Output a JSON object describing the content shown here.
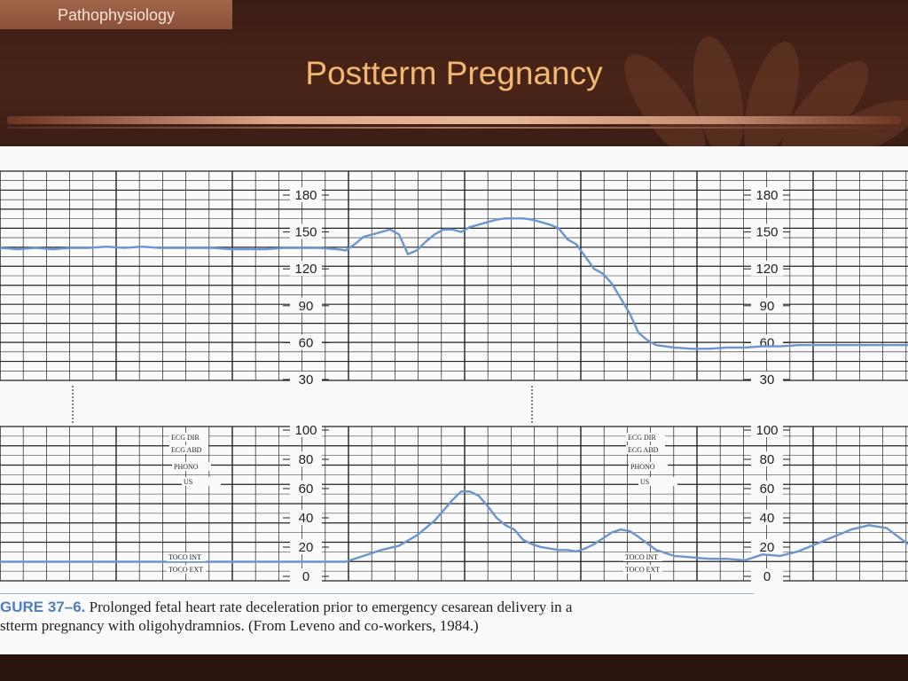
{
  "header": {
    "section_label": "Pathophysiology",
    "title": "Postterm Pregnancy"
  },
  "colors": {
    "background": "#3a1c14",
    "title": "#f2b870",
    "trace": "#6b95cf",
    "grid": "#1e1e1e"
  },
  "figure": {
    "caption_lead": "GURE 37–6.",
    "caption_line1": " Prolonged fetal heart rate deceleration prior to emergency cesarean delivery in a",
    "caption_line2": "stterm pregnancy with oligohydramnios. (From Leveno and co-workers, 1984.)",
    "strip_labels": {
      "ecg_dir": "ECG DIR",
      "ecg_abd": "ECG ABD",
      "phono": "PHONO",
      "us": "US",
      "toco_int": "TOCO INT",
      "toco_ext": "TOCO EXT"
    }
  },
  "chart_data": [
    {
      "type": "line",
      "name": "fetal-heart-rate",
      "ylim": [
        30,
        180
      ],
      "yticks": [
        30,
        60,
        90,
        120,
        150,
        180
      ],
      "x": [
        0,
        20,
        40,
        60,
        80,
        100,
        120,
        140,
        160,
        180,
        200,
        220,
        240,
        260,
        280,
        300,
        320,
        340,
        360,
        380,
        390,
        400,
        410,
        420,
        430,
        440,
        450,
        460,
        470,
        480,
        490,
        500,
        510,
        520,
        530,
        540,
        550,
        560,
        570,
        580,
        590,
        600,
        610,
        620,
        630,
        640,
        650,
        660,
        670,
        680,
        690,
        700,
        710,
        720,
        730,
        740,
        760,
        780,
        800,
        820,
        840,
        860,
        880,
        900,
        920,
        940,
        960,
        980,
        1000,
        1024
      ],
      "values": [
        137,
        136,
        137,
        136,
        137,
        137,
        138,
        137,
        138,
        137,
        137,
        137,
        137,
        136,
        136,
        136,
        137,
        137,
        137,
        136,
        135,
        140,
        146,
        148,
        150,
        152,
        148,
        132,
        135,
        142,
        148,
        152,
        152,
        150,
        154,
        156,
        158,
        160,
        161,
        161,
        161,
        160,
        158,
        156,
        153,
        144,
        140,
        130,
        120,
        116,
        108,
        96,
        84,
        68,
        62,
        58,
        56,
        55,
        55,
        56,
        56,
        57,
        57,
        58,
        58,
        58,
        58,
        58,
        58,
        58
      ]
    },
    {
      "type": "line",
      "name": "uterine-activity",
      "ylim": [
        0,
        100
      ],
      "yticks": [
        0,
        20,
        40,
        60,
        80,
        100
      ],
      "x": [
        0,
        50,
        100,
        150,
        200,
        250,
        300,
        350,
        390,
        410,
        430,
        450,
        470,
        490,
        500,
        510,
        520,
        530,
        540,
        550,
        560,
        570,
        580,
        590,
        600,
        610,
        620,
        630,
        640,
        650,
        660,
        670,
        680,
        690,
        700,
        710,
        720,
        740,
        760,
        780,
        800,
        820,
        840,
        860,
        880,
        900,
        920,
        940,
        960,
        980,
        1000,
        1024
      ],
      "values": [
        10,
        10,
        10,
        10,
        10,
        10,
        10,
        10,
        10,
        14,
        18,
        21,
        28,
        38,
        45,
        52,
        58,
        58,
        55,
        48,
        40,
        35,
        32,
        25,
        22,
        20,
        19,
        18,
        18,
        17,
        19,
        22,
        26,
        30,
        32,
        31,
        27,
        18,
        14,
        13,
        12,
        12,
        11,
        15,
        14,
        17,
        22,
        27,
        32,
        35,
        33,
        22
      ]
    }
  ]
}
